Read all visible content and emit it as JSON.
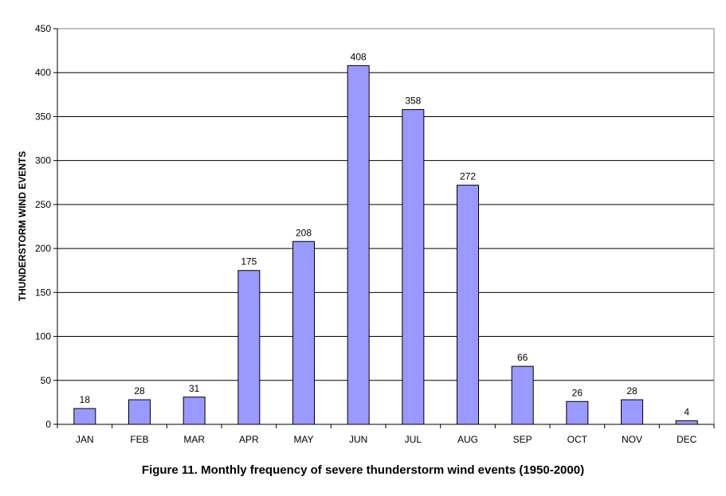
{
  "caption": "Figure 11. Monthly frequency of severe thunderstorm wind events (1950-2000)",
  "chart_data": {
    "type": "bar",
    "title": "",
    "xlabel": "",
    "ylabel": "THUNDERSTORM WIND EVENTS",
    "categories": [
      "JAN",
      "FEB",
      "MAR",
      "APR",
      "MAY",
      "JUN",
      "JUL",
      "AUG",
      "SEP",
      "OCT",
      "NOV",
      "DEC"
    ],
    "values": [
      18,
      28,
      31,
      175,
      208,
      408,
      358,
      272,
      66,
      26,
      28,
      4
    ],
    "ylim": [
      0,
      450
    ],
    "yticks": [
      0,
      50,
      100,
      150,
      200,
      250,
      300,
      350,
      400,
      450
    ],
    "grid": true,
    "legend": "none",
    "bar_color": "#9999ff",
    "bar_edge_color": "#000000"
  }
}
